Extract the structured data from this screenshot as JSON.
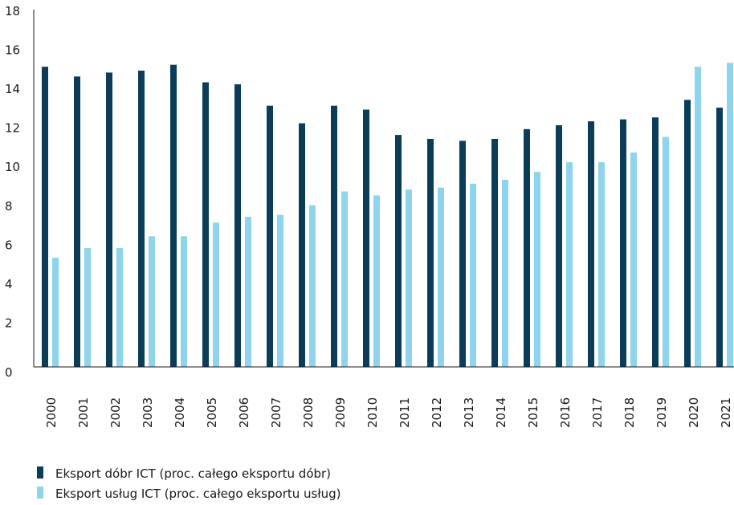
{
  "chart_data": {
    "type": "bar",
    "title": "",
    "xlabel": "",
    "ylabel": "",
    "ylim": [
      0,
      18
    ],
    "yticks": [
      0,
      2,
      4,
      6,
      8,
      10,
      12,
      14,
      16,
      18
    ],
    "grid": false,
    "legend_position": "bottom-left",
    "categories": [
      "2000",
      "2001",
      "2002",
      "2003",
      "2004",
      "2005",
      "2006",
      "2007",
      "2008",
      "2009",
      "2010",
      "2011",
      "2012",
      "2013",
      "2014",
      "2015",
      "2016",
      "2017",
      "2018",
      "2019",
      "2020",
      "2021"
    ],
    "series": [
      {
        "name": "Eksport dóbr ICT (proc. całego eksportu dóbr)",
        "color": "#0b3d59",
        "values": [
          15.4,
          14.9,
          15.1,
          15.2,
          15.5,
          14.6,
          14.5,
          13.4,
          12.5,
          13.4,
          13.2,
          11.9,
          11.7,
          11.6,
          11.7,
          12.2,
          12.4,
          12.6,
          12.7,
          12.8,
          13.7,
          13.3
        ]
      },
      {
        "name": "Eksport usług ICT (proc. całego eksportu usług)",
        "color": "#8fd4ed",
        "values": [
          5.6,
          6.1,
          6.1,
          6.7,
          6.7,
          7.4,
          7.7,
          7.8,
          8.3,
          9.0,
          8.8,
          9.1,
          9.2,
          9.4,
          9.6,
          10.0,
          10.5,
          10.5,
          11.0,
          11.8,
          15.4,
          15.6
        ]
      }
    ]
  }
}
